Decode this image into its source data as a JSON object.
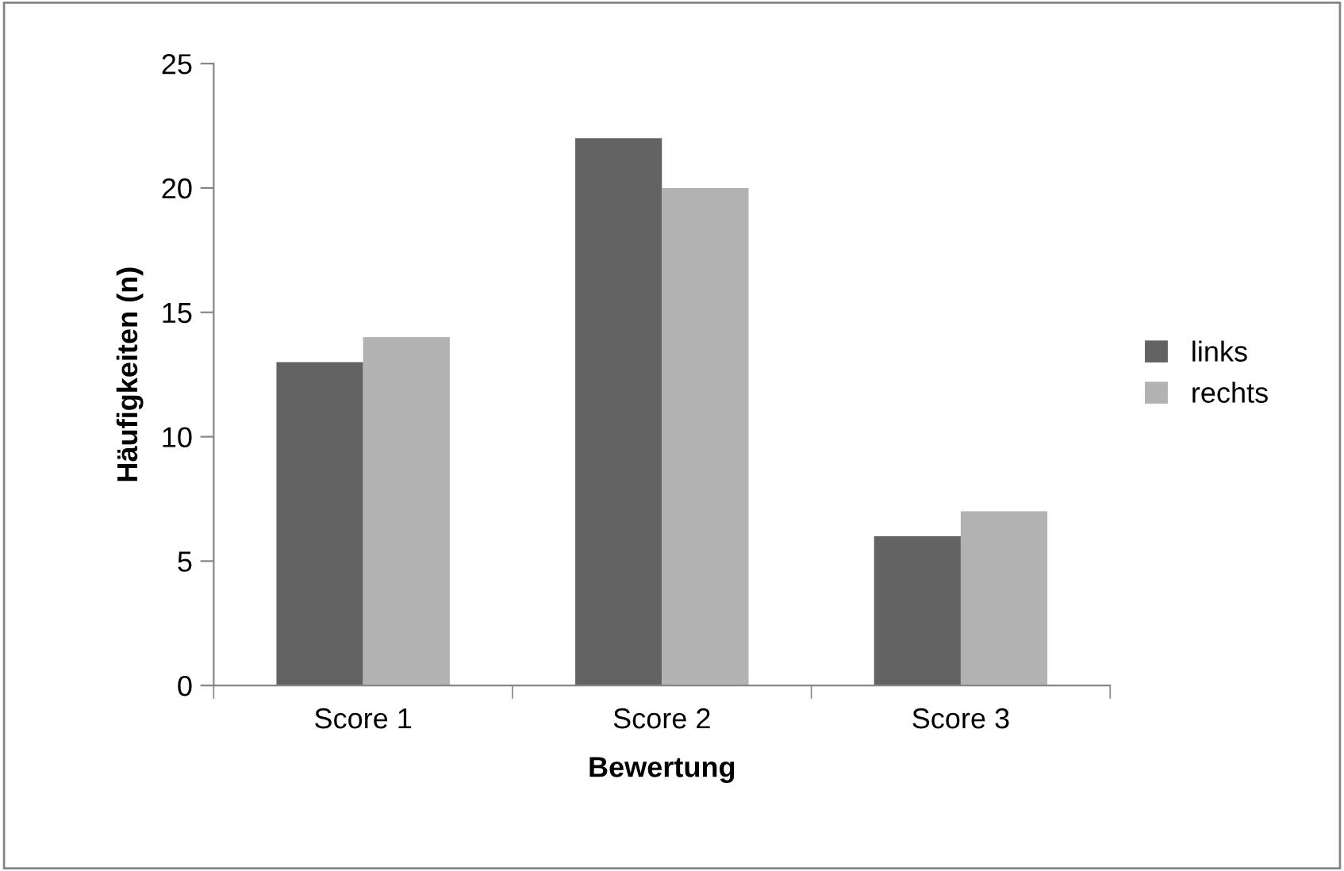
{
  "chart_data": {
    "type": "bar",
    "xlabel": "Bewertung",
    "ylabel": "Häufigkeiten (n)",
    "categories": [
      "Score 1",
      "Score 2",
      "Score 3"
    ],
    "series": [
      {
        "name": "links",
        "color": "#636363",
        "values": [
          13,
          22,
          6
        ]
      },
      {
        "name": "rechts",
        "color": "#b2b2b2",
        "values": [
          14,
          20,
          7
        ]
      }
    ],
    "ylim": [
      0,
      25
    ],
    "yticks": [
      0,
      5,
      10,
      15,
      20,
      25
    ],
    "grid": false,
    "legend": "right"
  }
}
